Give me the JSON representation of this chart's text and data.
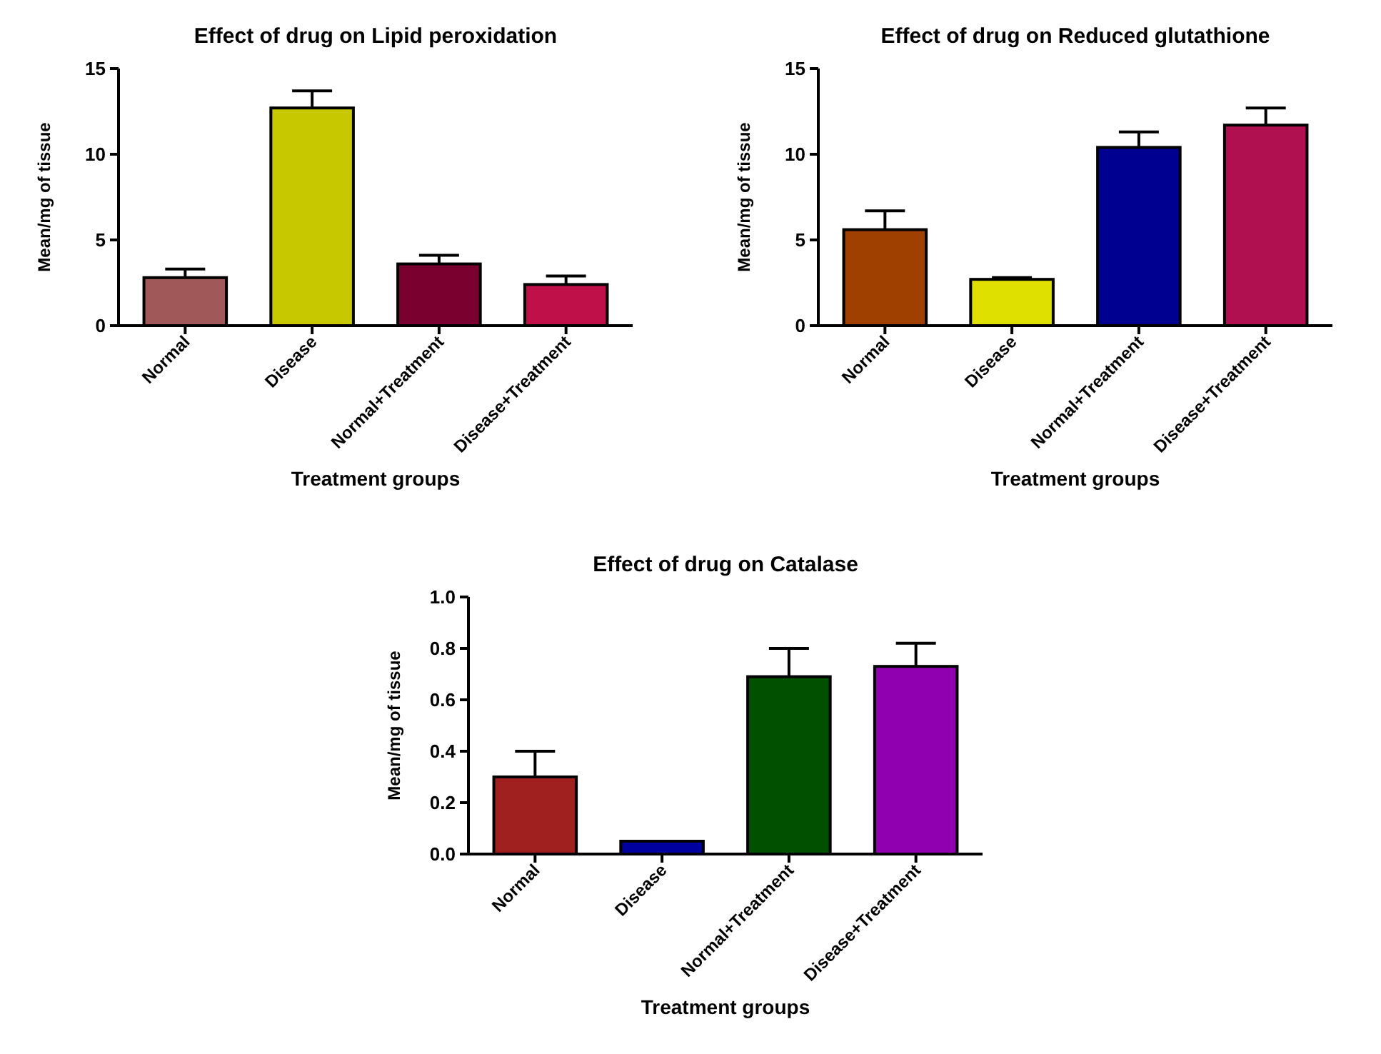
{
  "chart_data": [
    {
      "type": "bar",
      "title": "Effect of drug on Lipid peroxidation",
      "xlabel": "Treatment groups",
      "ylabel": "Mean/mg of tissue",
      "categories": [
        "Normal",
        "Disease",
        "Normal+Treatment",
        "Disease+Treatment"
      ],
      "values": [
        2.8,
        12.7,
        3.6,
        2.4
      ],
      "errors": [
        [
          2.8,
          3.3
        ],
        [
          12.7,
          13.7
        ],
        [
          3.6,
          4.1
        ],
        [
          2.4,
          2.9
        ]
      ],
      "colors": [
        "#a05858",
        "#c8c800",
        "#7a0030",
        "#c0104a"
      ],
      "ylim": [
        0,
        15
      ],
      "yticks": [
        0,
        5,
        10,
        15
      ],
      "grid": false
    },
    {
      "type": "bar",
      "title": "Effect of drug on Reduced glutathione",
      "xlabel": "Treatment groups",
      "ylabel": "Mean/mg of tissue",
      "categories": [
        "Normal",
        "Disease",
        "Normal+Treatment",
        "Disease+Treatment"
      ],
      "values": [
        5.6,
        2.7,
        10.4,
        11.7
      ],
      "errors": [
        [
          5.6,
          6.7
        ],
        [
          2.7,
          2.8
        ],
        [
          10.4,
          11.3
        ],
        [
          11.7,
          12.7
        ]
      ],
      "colors": [
        "#a04000",
        "#e0e000",
        "#000090",
        "#b01050"
      ],
      "ylim": [
        0,
        15
      ],
      "yticks": [
        0,
        5,
        10,
        15
      ],
      "grid": false
    },
    {
      "type": "bar",
      "title": "Effect of drug on Catalase",
      "xlabel": "Treatment groups",
      "ylabel": "Mean/mg of tissue",
      "categories": [
        "Normal",
        "Disease",
        "Normal+Treatment",
        "Disease+Treatment"
      ],
      "values": [
        0.3,
        0.05,
        0.69,
        0.73
      ],
      "errors": [
        [
          0.3,
          0.4
        ],
        null,
        [
          0.69,
          0.8
        ],
        [
          0.73,
          0.82
        ]
      ],
      "colors": [
        "#a02020",
        "#0000a0",
        "#005000",
        "#9000b0"
      ],
      "ylim": [
        0,
        1
      ],
      "yticks": [
        {
          "value": 0,
          "label": "0.0"
        },
        {
          "value": 0.2,
          "label": "0.2"
        },
        {
          "value": 0.4,
          "label": "0.4"
        },
        {
          "value": 0.6,
          "label": "0.6"
        },
        {
          "value": 0.8,
          "label": "0.8"
        },
        {
          "value": 1,
          "label": "1.0"
        }
      ],
      "grid": false
    }
  ]
}
